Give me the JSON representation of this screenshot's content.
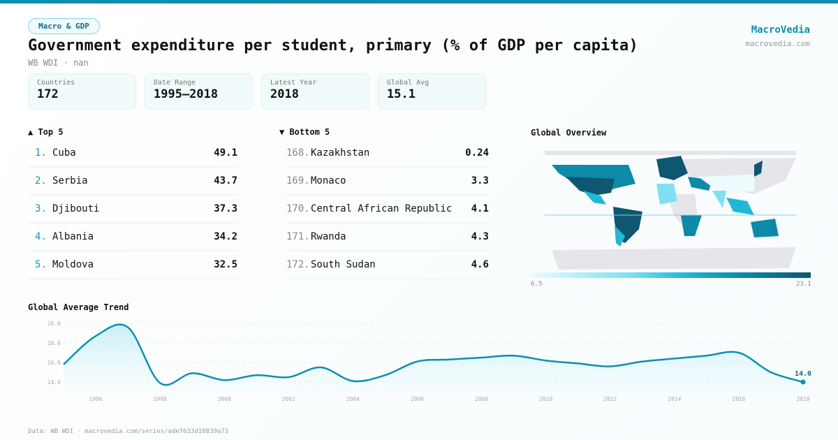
{
  "header": {
    "badge": "Macro & GDP",
    "title": "Government expenditure per student, primary (% of GDP per capita)",
    "subtitle": "WB WDI · nan",
    "brand": "MacroVedia",
    "brand_url": "macrovedia.com"
  },
  "cards": [
    {
      "label": "Countries",
      "value": "172"
    },
    {
      "label": "Date Range",
      "value": "1995–2018"
    },
    {
      "label": "Latest Year",
      "value": "2018"
    },
    {
      "label": "Global Avg",
      "value": "15.1"
    }
  ],
  "top": {
    "title": "▲ Top 5",
    "items": [
      {
        "rank": "1.",
        "name": "Cuba",
        "value": "49.1"
      },
      {
        "rank": "2.",
        "name": "Serbia",
        "value": "43.7"
      },
      {
        "rank": "3.",
        "name": "Djibouti",
        "value": "37.3"
      },
      {
        "rank": "4.",
        "name": "Albania",
        "value": "34.2"
      },
      {
        "rank": "5.",
        "name": "Moldova",
        "value": "32.5"
      }
    ]
  },
  "bottom": {
    "title": "▼ Bottom 5",
    "items": [
      {
        "rank": "168.",
        "name": "Kazakhstan",
        "value": "0.24"
      },
      {
        "rank": "169.",
        "name": "Monaco",
        "value": "3.3"
      },
      {
        "rank": "170.",
        "name": "Central African Republic",
        "value": "4.1"
      },
      {
        "rank": "171.",
        "name": "Rwanda",
        "value": "4.3"
      },
      {
        "rank": "172.",
        "name": "South Sudan",
        "value": "4.6"
      }
    ]
  },
  "map": {
    "title": "Global Overview",
    "legend_min": "6.5",
    "legend_max": "23.1",
    "no_data_color": "#e6e6ea",
    "scale_colors": [
      "#eefbfd",
      "#7fe0f2",
      "#21b8d6",
      "#0c8aa8",
      "#0f5670"
    ]
  },
  "chart_data": {
    "type": "area",
    "title": "Global Average Trend",
    "x": [
      1995,
      1996,
      1997,
      1998,
      1999,
      2000,
      2001,
      2002,
      2003,
      2004,
      2005,
      2006,
      2007,
      2008,
      2009,
      2010,
      2011,
      2012,
      2013,
      2014,
      2015,
      2016,
      2017,
      2018
    ],
    "values": [
      15.8,
      18.7,
      19.6,
      13.9,
      14.9,
      14.2,
      14.7,
      14.5,
      15.5,
      14.1,
      14.7,
      16.1,
      16.3,
      16.5,
      16.7,
      16.2,
      15.9,
      15.6,
      16.1,
      16.4,
      16.7,
      17.0,
      15.0,
      14.0
    ],
    "yticks": [
      "14.0",
      "16.0",
      "18.0",
      "20.0"
    ],
    "xticks": [
      "1996",
      "1998",
      "2000",
      "2002",
      "2004",
      "2006",
      "2008",
      "2010",
      "2012",
      "2014",
      "2016",
      "2018"
    ],
    "ylim": [
      14,
      20
    ],
    "xlim": [
      1995,
      2018
    ],
    "grid": true,
    "last_label": "14.0",
    "line_color": "#0e8fb0"
  },
  "footer": "Data: WB WDI · macrovedia.com/series/adef633d10839a73"
}
